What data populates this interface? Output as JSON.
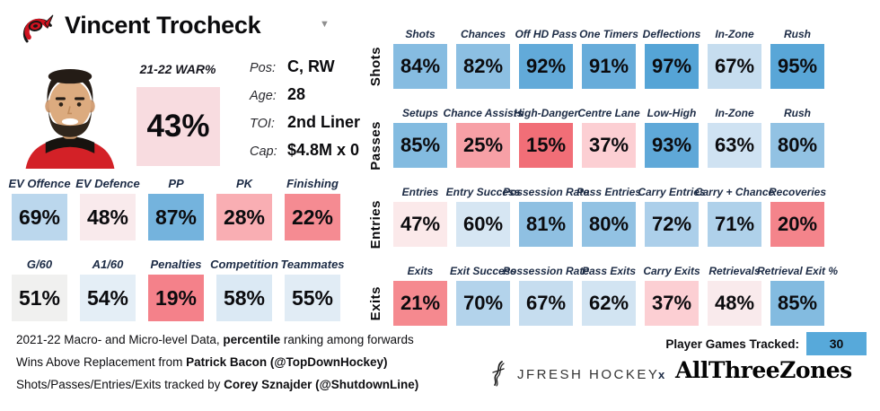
{
  "header": {
    "title": "Vincent Trocheck",
    "dropdown_glyph": "▼"
  },
  "player_info": {
    "rows": [
      {
        "label": "Pos:",
        "value": "C, RW"
      },
      {
        "label": "Age:",
        "value": "28"
      },
      {
        "label": "TOI:",
        "value": "2nd Liner"
      },
      {
        "label": "Cap:",
        "value": "$4.8M x 0"
      }
    ]
  },
  "chart_data": {
    "type": "heatmap",
    "title": "Vincent Trocheck 2021-22 percentile ranking among forwards",
    "unit": "percentile",
    "war": {
      "label": "21-22 WAR%",
      "pct": 43,
      "color": "#f8dce0"
    },
    "skater_grid": {
      "rows": [
        {
          "cells": [
            {
              "label": "EV Offence",
              "pct": 69,
              "color": "#bbd7ed"
            },
            {
              "label": "EV Defence",
              "pct": 48,
              "color": "#f9eaec"
            },
            {
              "label": "PP",
              "pct": 87,
              "color": "#74b3dd"
            },
            {
              "label": "PK",
              "pct": 28,
              "color": "#f9aeb3"
            },
            {
              "label": "Finishing",
              "pct": 22,
              "color": "#f58b92"
            }
          ]
        },
        {
          "cells": [
            {
              "label": "G/60",
              "pct": 51,
              "color": "#f0f0ef"
            },
            {
              "label": "A1/60",
              "pct": 54,
              "color": "#e4eef6"
            },
            {
              "label": "Penalties",
              "pct": 19,
              "color": "#f4818a"
            },
            {
              "label": "Competition",
              "pct": 58,
              "color": "#dbe9f4"
            },
            {
              "label": "Teammates",
              "pct": 55,
              "color": "#e1ecf5"
            }
          ]
        }
      ]
    },
    "zone_grid": {
      "rows": [
        {
          "label": "Shots",
          "cells": [
            {
              "label": "Shots",
              "pct": 84,
              "color": "#86bce1"
            },
            {
              "label": "Chances",
              "pct": 82,
              "color": "#8cbfe2"
            },
            {
              "label": "Off HD Pass",
              "pct": 92,
              "color": "#62aad9"
            },
            {
              "label": "One Timers",
              "pct": 91,
              "color": "#67acda"
            },
            {
              "label": "Deflections",
              "pct": 97,
              "color": "#55a4d6"
            },
            {
              "label": "In-Zone",
              "pct": 67,
              "color": "#c6ddef"
            },
            {
              "label": "Rush",
              "pct": 95,
              "color": "#59a6d7"
            }
          ]
        },
        {
          "label": "Passes",
          "cells": [
            {
              "label": "Setups",
              "pct": 85,
              "color": "#83bbe0"
            },
            {
              "label": "Chance Assists",
              "pct": 25,
              "color": "#f7a0a6"
            },
            {
              "label": "High-Danger",
              "pct": 15,
              "color": "#f16e77"
            },
            {
              "label": "Centre Lane",
              "pct": 37,
              "color": "#fccfd3"
            },
            {
              "label": "Low-High",
              "pct": 93,
              "color": "#5fa8d8"
            },
            {
              "label": "In-Zone",
              "pct": 63,
              "color": "#cfe2f2"
            },
            {
              "label": "Rush",
              "pct": 80,
              "color": "#92c2e3"
            }
          ]
        },
        {
          "label": "Entries",
          "cells": [
            {
              "label": "Entries",
              "pct": 47,
              "color": "#fbe9ea"
            },
            {
              "label": "Entry Success",
              "pct": 60,
              "color": "#d6e6f3"
            },
            {
              "label": "Possession Rate",
              "pct": 81,
              "color": "#8fc0e2"
            },
            {
              "label": "Pass Entries",
              "pct": 80,
              "color": "#92c2e3"
            },
            {
              "label": "Carry Entries",
              "pct": 72,
              "color": "#accfea"
            },
            {
              "label": "Carry + Chance",
              "pct": 71,
              "color": "#afd1ea"
            },
            {
              "label": "Recoveries",
              "pct": 20,
              "color": "#f4848b"
            }
          ]
        },
        {
          "label": "Exits",
          "cells": [
            {
              "label": "Exits",
              "pct": 21,
              "color": "#f5898f"
            },
            {
              "label": "Exit Success",
              "pct": 70,
              "color": "#b3d3eb"
            },
            {
              "label": "Possession Rate",
              "pct": 67,
              "color": "#c6ddef"
            },
            {
              "label": "Pass Exits",
              "pct": 62,
              "color": "#d2e4f2"
            },
            {
              "label": "Carry Exits",
              "pct": 37,
              "color": "#fccfd3"
            },
            {
              "label": "Retrievals",
              "pct": 48,
              "color": "#f9eaec"
            },
            {
              "label": "Retrieval Exit %",
              "pct": 85,
              "color": "#83bbe0"
            }
          ]
        }
      ]
    }
  },
  "footer": {
    "lines": [
      {
        "pre": "2021-22 Macro- and Micro-level Data, ",
        "bold": "percentile",
        "post": " ranking among forwards"
      },
      {
        "pre": "Wins Above Replacement from ",
        "bold": "Patrick Bacon (@TopDownHockey)",
        "post": ""
      },
      {
        "pre": "Shots/Passes/Entries/Exits tracked by ",
        "bold": "Corey Sznajder (@ShutdownLine)",
        "post": ""
      }
    ],
    "games_tracked": {
      "label": "Player Games Tracked:",
      "value": "30",
      "color": "#57a9da"
    },
    "brands": {
      "jfresh": "JFRESH HOCKEY",
      "x": "x",
      "atz": "AllThreeZones"
    }
  }
}
